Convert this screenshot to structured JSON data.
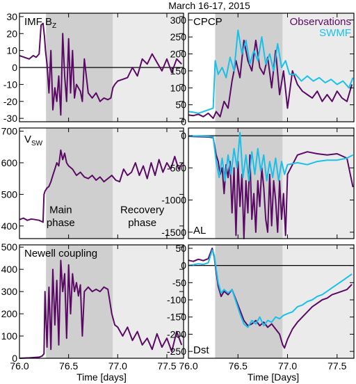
{
  "figure": {
    "title": "March 16-17, 2015",
    "xlabel_left": "Time [days]",
    "xlabel_right": "Time [Days]",
    "phase_labels": [
      {
        "text": "Main",
        "panel": "vsw",
        "x": 76.42,
        "y": 440
      },
      {
        "text": "phase",
        "panel": "vsw",
        "x": 76.42,
        "y": 400
      },
      {
        "text": "Recovery",
        "panel": "vsw",
        "x": 77.25,
        "y": 440
      },
      {
        "text": "phase",
        "panel": "vsw",
        "x": 77.25,
        "y": 400
      }
    ]
  },
  "colors": {
    "observations": "#5a0a64",
    "swmf": "#18c0ea",
    "main_phase_shade": "#cfcfcf",
    "recovery_phase_shade": "#ebebeb",
    "zero_line": "#000000"
  },
  "chart_data": [
    {
      "id": "imf",
      "type": "line",
      "label": "IMF B",
      "label_sub": "Z",
      "xlim": [
        76.0,
        77.67
      ],
      "ylim": [
        -32,
        32
      ],
      "yticks": [
        -30,
        -20,
        -10,
        0,
        10,
        20,
        30
      ],
      "xticks": [
        76.0,
        76.5,
        77.0,
        77.5
      ],
      "zero_line": true,
      "series": [
        {
          "x": [
            76.0,
            76.05,
            76.1,
            76.14,
            76.17,
            76.2,
            76.22,
            76.24,
            76.255,
            76.265,
            76.28,
            76.3,
            76.32,
            76.34,
            76.36,
            76.38,
            76.4,
            76.42,
            76.44,
            76.46,
            76.48,
            76.5,
            76.52,
            76.54,
            76.56,
            76.58,
            76.6,
            76.62,
            76.64,
            76.66,
            76.7,
            76.74,
            76.78,
            76.82,
            76.86,
            76.9,
            76.93,
            76.95,
            76.97,
            77.0,
            77.05,
            77.1,
            77.15,
            77.2,
            77.25,
            77.3,
            77.35,
            77.4,
            77.45,
            77.5,
            77.55,
            77.6,
            77.65
          ],
          "y": [
            7,
            6,
            5,
            7,
            6,
            8,
            25,
            26,
            18,
            10,
            2,
            -15,
            10,
            -25,
            -12,
            -20,
            -5,
            -28,
            20,
            -5,
            -20,
            17,
            -15,
            10,
            -18,
            -10,
            -12,
            -14,
            -20,
            5,
            -15,
            -18,
            -15,
            -20,
            -18,
            -19,
            -18,
            -12,
            -10,
            -8,
            -7,
            -6,
            0,
            -5,
            5,
            2,
            8,
            3,
            -2,
            5,
            -3,
            5,
            2
          ]
        }
      ]
    },
    {
      "id": "vsw",
      "type": "line",
      "label": "V",
      "label_sub": "SW",
      "xlim": [
        76.0,
        77.67
      ],
      "ylim": [
        360,
        710
      ],
      "yticks": [
        400,
        500,
        600,
        700
      ],
      "xticks": [
        76.0,
        76.5,
        77.0,
        77.5
      ],
      "zero_line": false,
      "series": [
        {
          "x": [
            76.0,
            76.04,
            76.08,
            76.12,
            76.16,
            76.2,
            76.22,
            76.24,
            76.25,
            76.26,
            76.28,
            76.3,
            76.32,
            76.34,
            76.36,
            76.38,
            76.4,
            76.42,
            76.44,
            76.46,
            76.48,
            76.5,
            76.54,
            76.58,
            76.62,
            76.66,
            76.7,
            76.74,
            76.78,
            76.82,
            76.86,
            76.9,
            76.94,
            76.98,
            77.02,
            77.06,
            77.1,
            77.14,
            77.18,
            77.22,
            77.26,
            77.3,
            77.34,
            77.38,
            77.42,
            77.46,
            77.5,
            77.54,
            77.58,
            77.62,
            77.66
          ],
          "y": [
            420,
            425,
            418,
            422,
            420,
            418,
            415,
            412,
            500,
            510,
            520,
            525,
            540,
            560,
            580,
            600,
            590,
            640,
            610,
            630,
            600,
            590,
            580,
            560,
            570,
            555,
            550,
            560,
            545,
            555,
            540,
            550,
            560,
            545,
            540,
            580,
            560,
            570,
            600,
            560,
            590,
            550,
            600,
            560,
            610,
            570,
            600,
            580,
            620,
            580,
            600
          ]
        }
      ]
    },
    {
      "id": "newell",
      "type": "line",
      "label": "Newell coupling",
      "xlim": [
        76.0,
        77.67
      ],
      "ylim": [
        0,
        510
      ],
      "yticks": [
        0,
        100,
        200,
        300,
        400,
        500
      ],
      "xticks": [
        76.0,
        76.5,
        77.0,
        77.5
      ],
      "zero_line": false,
      "series": [
        {
          "x": [
            76.0,
            76.1,
            76.2,
            76.23,
            76.25,
            76.26,
            76.28,
            76.3,
            76.32,
            76.34,
            76.36,
            76.38,
            76.4,
            76.42,
            76.44,
            76.46,
            76.48,
            76.5,
            76.52,
            76.54,
            76.56,
            76.58,
            76.6,
            76.62,
            76.64,
            76.66,
            76.7,
            76.74,
            76.78,
            76.82,
            76.86,
            76.9,
            76.94,
            76.97,
            77.0,
            77.05,
            77.1,
            77.15,
            77.2,
            77.25,
            77.3,
            77.35,
            77.4,
            77.45,
            77.5,
            77.55,
            77.6,
            77.65
          ],
          "y": [
            0,
            2,
            5,
            10,
            20,
            300,
            50,
            320,
            40,
            400,
            150,
            350,
            60,
            440,
            300,
            380,
            90,
            420,
            200,
            380,
            300,
            340,
            280,
            330,
            100,
            300,
            320,
            300,
            310,
            300,
            320,
            310,
            200,
            150,
            140,
            100,
            140,
            80,
            120,
            60,
            90,
            40,
            110,
            50,
            90,
            30,
            120,
            60
          ]
        }
      ]
    },
    {
      "id": "cpcp",
      "type": "line",
      "label": "CPCP",
      "legend": [
        "Observations",
        "SWMF"
      ],
      "legend_placement": "top-right",
      "xlim": [
        76.0,
        77.67
      ],
      "ylim": [
        0,
        320
      ],
      "yticks": [
        0,
        50,
        100,
        150,
        200,
        250,
        300
      ],
      "xticks": [
        76.0,
        76.5,
        77.0,
        77.5
      ],
      "zero_line": false,
      "series": [
        {
          "name": "Observations",
          "x": [
            76.0,
            76.05,
            76.1,
            76.15,
            76.2,
            76.25,
            76.28,
            76.32,
            76.36,
            76.4,
            76.44,
            76.48,
            76.52,
            76.56,
            76.6,
            76.64,
            76.68,
            76.72,
            76.76,
            76.8,
            76.84,
            76.88,
            76.92,
            76.96,
            77.0,
            77.05,
            77.1,
            77.15,
            77.2,
            77.25,
            77.3,
            77.35,
            77.4,
            77.45,
            77.5,
            77.55,
            77.6,
            77.65
          ],
          "y": [
            20,
            18,
            22,
            15,
            25,
            10,
            30,
            15,
            60,
            40,
            120,
            180,
            130,
            240,
            180,
            150,
            240,
            160,
            140,
            190,
            100,
            210,
            80,
            150,
            40,
            150,
            110,
            90,
            80,
            70,
            90,
            60,
            80,
            60,
            90,
            70,
            60,
            110
          ]
        },
        {
          "name": "SWMF",
          "x": [
            76.0,
            76.05,
            76.1,
            76.15,
            76.2,
            76.25,
            76.27,
            76.3,
            76.34,
            76.38,
            76.42,
            76.46,
            76.5,
            76.54,
            76.58,
            76.62,
            76.66,
            76.7,
            76.74,
            76.78,
            76.82,
            76.86,
            76.9,
            76.94,
            76.98,
            77.02,
            77.08,
            77.14,
            77.2,
            77.26,
            77.32,
            77.38,
            77.44,
            77.5,
            77.56,
            77.62,
            77.66
          ],
          "y": [
            30,
            28,
            25,
            30,
            35,
            40,
            180,
            140,
            160,
            130,
            190,
            150,
            270,
            200,
            240,
            170,
            210,
            180,
            250,
            170,
            200,
            150,
            230,
            160,
            180,
            140,
            140,
            120,
            135,
            120,
            130,
            115,
            125,
            110,
            120,
            100,
            130
          ]
        }
      ]
    },
    {
      "id": "al",
      "type": "line",
      "label": "AL",
      "xlim": [
        76.0,
        77.67
      ],
      "ylim": [
        -1600,
        120
      ],
      "yticks": [
        -1500,
        -1000,
        -500,
        0
      ],
      "xticks": [
        76.0,
        76.5,
        77.0,
        77.5
      ],
      "zero_line": true,
      "series": [
        {
          "name": "Observations",
          "x": [
            76.0,
            76.1,
            76.2,
            76.25,
            76.28,
            76.3,
            76.32,
            76.34,
            76.36,
            76.38,
            76.4,
            76.42,
            76.44,
            76.46,
            76.48,
            76.5,
            76.52,
            76.54,
            76.56,
            76.58,
            76.6,
            76.62,
            76.64,
            76.66,
            76.68,
            76.7,
            76.72,
            76.74,
            76.76,
            76.78,
            76.8,
            76.82,
            76.84,
            76.86,
            76.88,
            76.9,
            76.92,
            76.94,
            76.96,
            76.98,
            77.0,
            77.1,
            77.2,
            77.3,
            77.4,
            77.5,
            77.6,
            77.66
          ],
          "y": [
            -10,
            -15,
            -20,
            -30,
            -300,
            -400,
            -600,
            -500,
            -900,
            -450,
            -650,
            -400,
            -1200,
            -500,
            -1550,
            -400,
            -1100,
            -600,
            -1600,
            -700,
            -1200,
            -300,
            -1300,
            -900,
            -1500,
            -700,
            -1100,
            -500,
            -800,
            -1300,
            -1500,
            -600,
            -1400,
            -700,
            -1000,
            -1500,
            -700,
            -1300,
            -900,
            -1550,
            -600,
            -300,
            -250,
            -280,
            -300,
            -280,
            -350,
            -800
          ]
        },
        {
          "name": "SWMF",
          "x": [
            76.0,
            76.1,
            76.2,
            76.25,
            76.28,
            76.31,
            76.34,
            76.37,
            76.4,
            76.43,
            76.46,
            76.49,
            76.52,
            76.55,
            76.58,
            76.61,
            76.64,
            76.67,
            76.7,
            76.73,
            76.76,
            76.79,
            76.82,
            76.85,
            76.88,
            76.91,
            76.94,
            76.97,
            77.0,
            77.1,
            77.2,
            77.3,
            77.4,
            77.5,
            77.6,
            77.66
          ],
          "y": [
            -5,
            -5,
            -10,
            -20,
            -400,
            -650,
            -350,
            -700,
            -300,
            -600,
            -200,
            -500,
            50,
            -650,
            -300,
            -700,
            -250,
            -600,
            -200,
            -550,
            -300,
            -700,
            -400,
            -650,
            -350,
            -700,
            -400,
            -600,
            -450,
            -420,
            -450,
            -400,
            -380,
            -380,
            -350,
            -300
          ]
        }
      ]
    },
    {
      "id": "dst",
      "type": "line",
      "label": "Dst",
      "xlim": [
        76.0,
        77.67
      ],
      "ylim": [
        -270,
        60
      ],
      "yticks": [
        -250,
        -200,
        -150,
        -100,
        -50,
        0,
        50
      ],
      "xticks": [
        76.0,
        76.5,
        77.0,
        77.5
      ],
      "zero_line": true,
      "series": [
        {
          "name": "Observations",
          "x": [
            76.0,
            76.05,
            76.1,
            76.15,
            76.2,
            76.24,
            76.26,
            76.28,
            76.3,
            76.33,
            76.36,
            76.4,
            76.44,
            76.48,
            76.52,
            76.56,
            76.6,
            76.64,
            76.68,
            76.72,
            76.76,
            76.8,
            76.84,
            76.88,
            76.92,
            76.95,
            76.97,
            77.0,
            77.05,
            77.1,
            77.15,
            77.2,
            77.25,
            77.3,
            77.35,
            77.4,
            77.45,
            77.5,
            77.55,
            77.6,
            77.65
          ],
          "y": [
            15,
            12,
            18,
            14,
            20,
            50,
            25,
            -20,
            -60,
            -90,
            -75,
            -85,
            -70,
            -100,
            -130,
            -160,
            -175,
            -170,
            -160,
            -175,
            -165,
            -180,
            -170,
            -185,
            -200,
            -230,
            -240,
            -215,
            -185,
            -165,
            -150,
            -135,
            -120,
            -110,
            -100,
            -95,
            -85,
            -80,
            -75,
            -70,
            -55
          ]
        },
        {
          "name": "SWMF",
          "x": [
            76.0,
            76.05,
            76.1,
            76.15,
            76.2,
            76.24,
            76.26,
            76.28,
            76.3,
            76.33,
            76.36,
            76.4,
            76.44,
            76.48,
            76.52,
            76.56,
            76.6,
            76.64,
            76.68,
            76.72,
            76.76,
            76.8,
            76.84,
            76.88,
            76.92,
            76.96,
            77.0,
            77.05,
            77.1,
            77.15,
            77.2,
            77.25,
            77.3,
            77.35,
            77.4,
            77.45,
            77.5,
            77.55,
            77.6,
            77.65
          ],
          "y": [
            0,
            2,
            5,
            3,
            8,
            45,
            30,
            -10,
            -50,
            -80,
            -70,
            -80,
            -70,
            -105,
            -140,
            -170,
            -180,
            -160,
            -170,
            -150,
            -175,
            -160,
            -165,
            -150,
            -155,
            -145,
            -140,
            -135,
            -120,
            -115,
            -105,
            -100,
            -90,
            -85,
            -75,
            -65,
            -55,
            -45,
            -35,
            -25
          ]
        }
      ]
    }
  ]
}
